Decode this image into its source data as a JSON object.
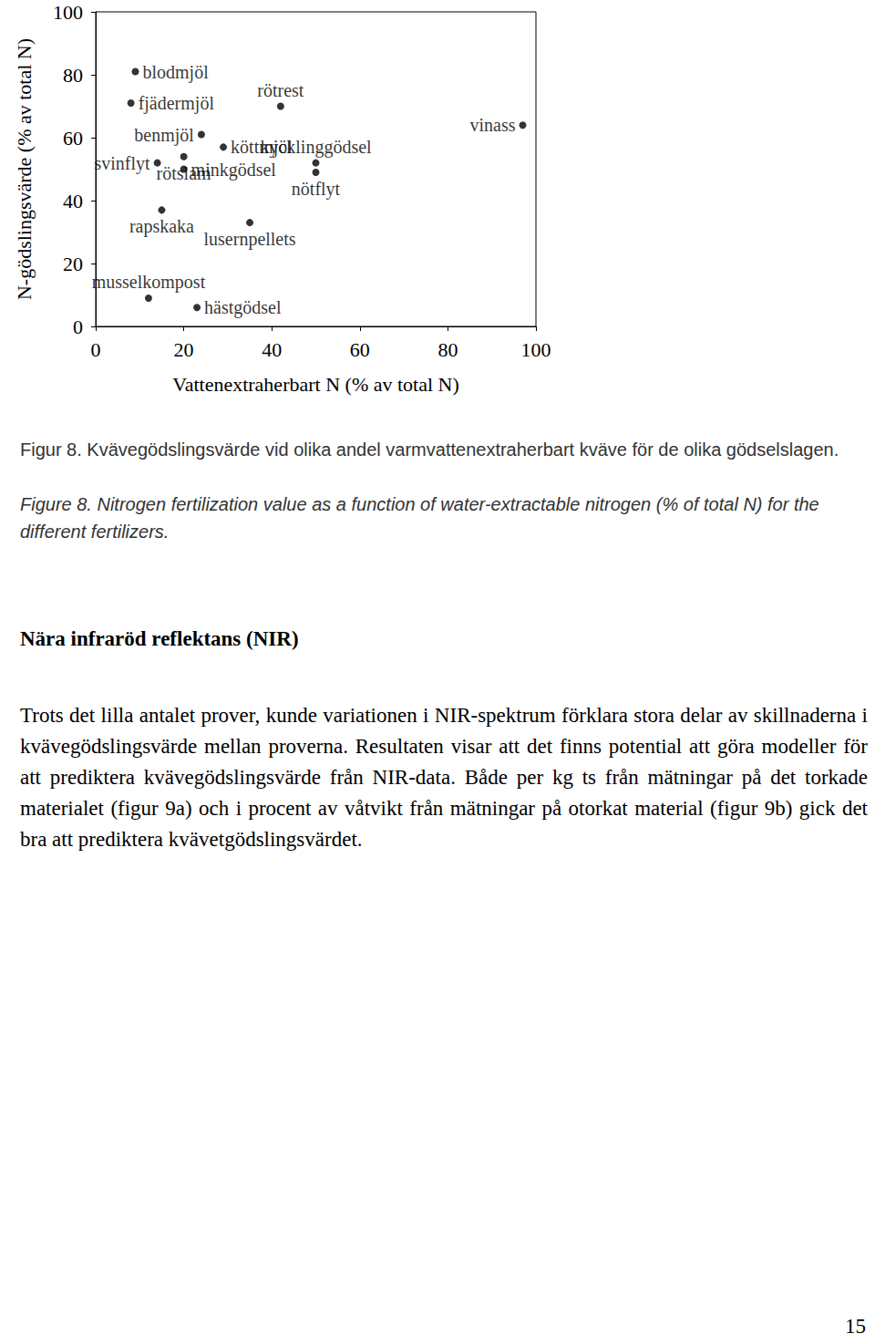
{
  "chart_data": {
    "type": "scatter",
    "x_label": "Vattenextraherbart N (% av total N)",
    "y_label": "N-gödslingsvärde (% av total N)",
    "labels": [
      "blodmjöl",
      "fjädermjöl",
      "rötrest",
      "benmjöl",
      "vinass",
      "köttmjöl",
      "svinflyt",
      "minkgödsel",
      "kycklinggödsel",
      "nötflyt",
      "rötslam",
      "rapskaka",
      "lusernpellets",
      "musselkompost",
      "hästgödsel"
    ],
    "x": [
      9,
      8,
      42,
      24,
      97,
      29,
      14,
      20,
      50,
      50,
      20,
      15,
      35,
      12,
      23
    ],
    "y": [
      81,
      71,
      70,
      61,
      64,
      57,
      52,
      50,
      52,
      49,
      54,
      37,
      33,
      9,
      6
    ],
    "color": "#000000",
    "marker": "circle",
    "xlim": [
      0,
      100
    ],
    "xticks": [
      0,
      20,
      40,
      60,
      80,
      100
    ],
    "ylim": [
      0,
      100
    ],
    "yticks": [
      0,
      20,
      40,
      60,
      80,
      100
    ],
    "grid": false
  },
  "captions": [
    "Figur 8. Kvävegödslingsvärde vid olika andel varmvattenextraherbart kväve för de olika gödselslagen.",
    "Figure 8. Nitrogen fertilization value as a function of water-extractable nitrogen (% of total N) for the different fertilizers."
  ],
  "heading": "Nära infraröd reflektans (NIR)",
  "paragraph": "Trots det lilla antalet prover, kunde variationen i NIR-spektrum förklara stora delar av skillnaderna i kvävegödslingsvärde mellan proverna. Resultaten visar att det finns potential att göra modeller för att prediktera kvävegödslingsvärde från NIR-data. Både per kg ts från mätningar på det torkade materialet (figur 9a) och i procent av våtvikt från mätningar på otorkat material (figur 9b) gick det bra att prediktera kvävetgödslingsvärdet.",
  "page_number": "15"
}
